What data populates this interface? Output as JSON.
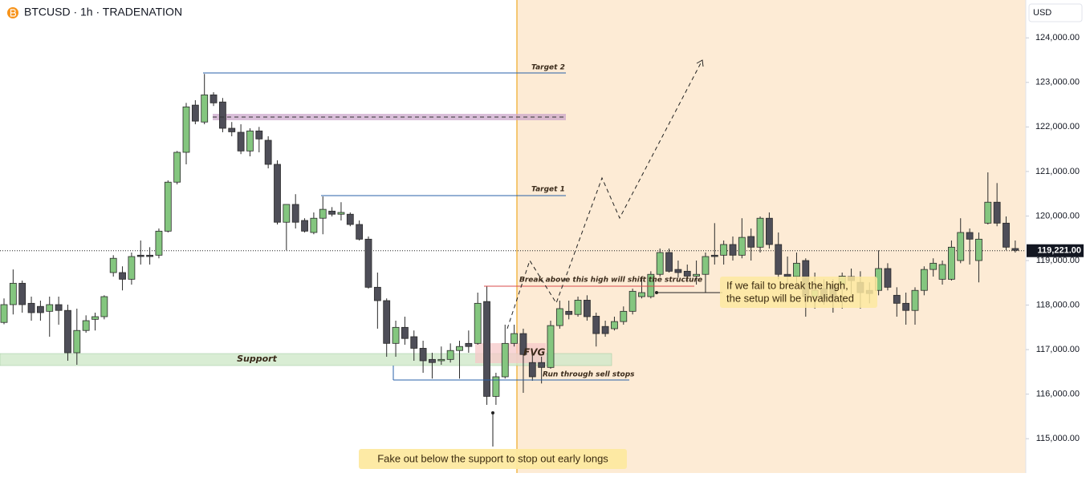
{
  "chart_data": {
    "type": "candlestick",
    "title": "BTCUSD · 1h · TRADENATION",
    "currency": "USD",
    "up_color": "#84c67f",
    "down_color": "#4e4e58",
    "border_color": "#2a2a2a",
    "ylim": [
      114230,
      124850
    ],
    "yticks": [
      {
        "value": 115000,
        "label": "115,000.00"
      },
      {
        "value": 116000,
        "label": "116,000.00"
      },
      {
        "value": 117000,
        "label": "117,000.00"
      },
      {
        "value": 118000,
        "label": "118,000.00"
      },
      {
        "value": 119000,
        "label": "119,000.00"
      },
      {
        "value": 120000,
        "label": "120,000.00"
      },
      {
        "value": 121000,
        "label": "121,000.00"
      },
      {
        "value": 122000,
        "label": "122,000.00"
      },
      {
        "value": 123000,
        "label": "123,000.00"
      },
      {
        "value": 124000,
        "label": "124,000.00"
      }
    ],
    "last_price": {
      "value": 119221,
      "label": "119,221.00"
    },
    "candles": [
      [
        117610,
        118150,
        117570,
        118010
      ],
      [
        118010,
        118800,
        117790,
        118490
      ],
      [
        118490,
        118550,
        117830,
        118010
      ],
      [
        118040,
        118190,
        117650,
        117830
      ],
      [
        117970,
        118100,
        117650,
        117830
      ],
      [
        117860,
        118190,
        117290,
        118010
      ],
      [
        118010,
        118190,
        117560,
        117880
      ],
      [
        117880,
        118010,
        116750,
        116930
      ],
      [
        116930,
        117920,
        116660,
        117430
      ],
      [
        117430,
        117770,
        117380,
        117650
      ],
      [
        117680,
        117830,
        117430,
        117740
      ],
      [
        117740,
        118220,
        117680,
        118190
      ],
      [
        118730,
        119120,
        118640,
        119050
      ],
      [
        118730,
        118870,
        118330,
        118580
      ],
      [
        118580,
        119180,
        118460,
        119090
      ],
      [
        119120,
        119450,
        118910,
        119090
      ],
      [
        119120,
        119300,
        118910,
        119090
      ],
      [
        119120,
        119720,
        119050,
        119660
      ],
      [
        119660,
        120800,
        119630,
        120760
      ],
      [
        120760,
        121460,
        120710,
        121430
      ],
      [
        121430,
        122540,
        121160,
        122450
      ],
      [
        122490,
        122600,
        122060,
        122130
      ],
      [
        122110,
        123190,
        122060,
        122720
      ],
      [
        122720,
        122780,
        122470,
        122540
      ],
      [
        122560,
        122650,
        121880,
        121970
      ],
      [
        121970,
        122110,
        121790,
        121890
      ],
      [
        121880,
        122060,
        121390,
        121460
      ],
      [
        121460,
        121970,
        121340,
        121910
      ],
      [
        121910,
        122000,
        121430,
        121730
      ],
      [
        121700,
        121790,
        121070,
        121160
      ],
      [
        121160,
        121250,
        119810,
        119860
      ],
      [
        119860,
        120260,
        119230,
        120260
      ],
      [
        120260,
        120490,
        119720,
        119860
      ],
      [
        119900,
        119950,
        119630,
        119660
      ],
      [
        119630,
        120080,
        119590,
        119950
      ],
      [
        119950,
        120440,
        119590,
        120150
      ],
      [
        120110,
        120200,
        119990,
        120040
      ],
      [
        120040,
        120310,
        119900,
        120080
      ],
      [
        120040,
        120080,
        119770,
        119810
      ],
      [
        119810,
        119900,
        119450,
        119480
      ],
      [
        119480,
        119540,
        118370,
        118400
      ],
      [
        118400,
        118730,
        117470,
        118100
      ],
      [
        118100,
        118150,
        116840,
        117140
      ],
      [
        117140,
        117650,
        116840,
        117500
      ],
      [
        117500,
        117740,
        117110,
        117250
      ],
      [
        117290,
        117430,
        116750,
        117030
      ],
      [
        117030,
        117200,
        116480,
        116750
      ],
      [
        116780,
        116930,
        116350,
        116710
      ],
      [
        116750,
        117070,
        116660,
        116780
      ],
      [
        116780,
        117140,
        116710,
        116980
      ],
      [
        116980,
        117200,
        116350,
        117070
      ],
      [
        117140,
        117430,
        116930,
        117070
      ],
      [
        117140,
        118280,
        117110,
        118040
      ],
      [
        118080,
        118420,
        115760,
        115950
      ],
      [
        115950,
        116480,
        115760,
        116390
      ],
      [
        116390,
        117560,
        116350,
        117140
      ],
      [
        117140,
        117560,
        117070,
        117360
      ],
      [
        117360,
        117470,
        116030,
        116890
      ],
      [
        116710,
        116930,
        116300,
        116390
      ],
      [
        116710,
        116840,
        116240,
        116600
      ],
      [
        116600,
        117650,
        116570,
        117540
      ],
      [
        117540,
        118100,
        117470,
        117920
      ],
      [
        117860,
        118100,
        117680,
        117790
      ],
      [
        117790,
        118190,
        117740,
        118110
      ],
      [
        118110,
        118220,
        117650,
        117740
      ],
      [
        117750,
        117830,
        117070,
        117360
      ],
      [
        117520,
        117650,
        117290,
        117360
      ],
      [
        117470,
        117740,
        117430,
        117630
      ],
      [
        117630,
        117970,
        117560,
        117860
      ],
      [
        117860,
        118370,
        117790,
        118310
      ],
      [
        118190,
        118640,
        118150,
        118280
      ],
      [
        118190,
        118760,
        118150,
        118690
      ],
      [
        118690,
        119270,
        118640,
        119180
      ],
      [
        119180,
        119270,
        118730,
        118760
      ],
      [
        118800,
        119000,
        118620,
        118730
      ],
      [
        118760,
        118910,
        118550,
        118650
      ],
      [
        118650,
        119000,
        118460,
        118690
      ],
      [
        118690,
        119180,
        118280,
        119090
      ],
      [
        119120,
        119840,
        118910,
        119090
      ],
      [
        119120,
        119450,
        118910,
        119360
      ],
      [
        119360,
        119540,
        119000,
        119120
      ],
      [
        119120,
        119950,
        119050,
        119520
      ],
      [
        119540,
        119720,
        119000,
        119300
      ],
      [
        119300,
        119990,
        119180,
        119950
      ],
      [
        119950,
        120080,
        119270,
        119360
      ],
      [
        119360,
        119630,
        118580,
        118690
      ],
      [
        118690,
        119090,
        118460,
        118640
      ],
      [
        118640,
        119180,
        118460,
        118940
      ],
      [
        119000,
        119050,
        117740,
        118190
      ],
      [
        118190,
        118730,
        117920,
        118330
      ],
      [
        118370,
        118580,
        118010,
        118150
      ],
      [
        118460,
        118580,
        117830,
        118150
      ],
      [
        118460,
        118730,
        117920,
        118650
      ],
      [
        118640,
        118820,
        118190,
        118550
      ],
      [
        118510,
        118760,
        117920,
        118280
      ],
      [
        118330,
        118510,
        118040,
        118260
      ],
      [
        118330,
        119230,
        118220,
        118820
      ],
      [
        118820,
        118940,
        118330,
        118400
      ],
      [
        118220,
        118400,
        117740,
        118040
      ],
      [
        118040,
        118280,
        117560,
        117880
      ],
      [
        117880,
        118400,
        117560,
        118330
      ],
      [
        118330,
        118870,
        118220,
        118800
      ],
      [
        118800,
        119050,
        118640,
        118940
      ],
      [
        118580,
        119000,
        118460,
        118910
      ],
      [
        118580,
        119450,
        118550,
        119300
      ],
      [
        119000,
        119950,
        118940,
        119630
      ],
      [
        119630,
        119720,
        118910,
        119480
      ],
      [
        119000,
        119630,
        118510,
        119480
      ],
      [
        119840,
        120980,
        119810,
        120310
      ],
      [
        120310,
        120740,
        119770,
        119840
      ],
      [
        119840,
        119990,
        119230,
        119300
      ],
      [
        119270,
        119450,
        119180,
        119230
      ]
    ],
    "annotations": {
      "target_2": "Target 2",
      "target_1": "Target 1",
      "support": "Support",
      "fvg": "FVG",
      "sell_stops": "Run through sell stops",
      "break_high": "Break above this high will shift the structure",
      "invalidation": [
        "If we fail to break the high,",
        "the setup will be invalidated"
      ],
      "fake_out": "Fake out below the support to stop out early longs"
    }
  }
}
